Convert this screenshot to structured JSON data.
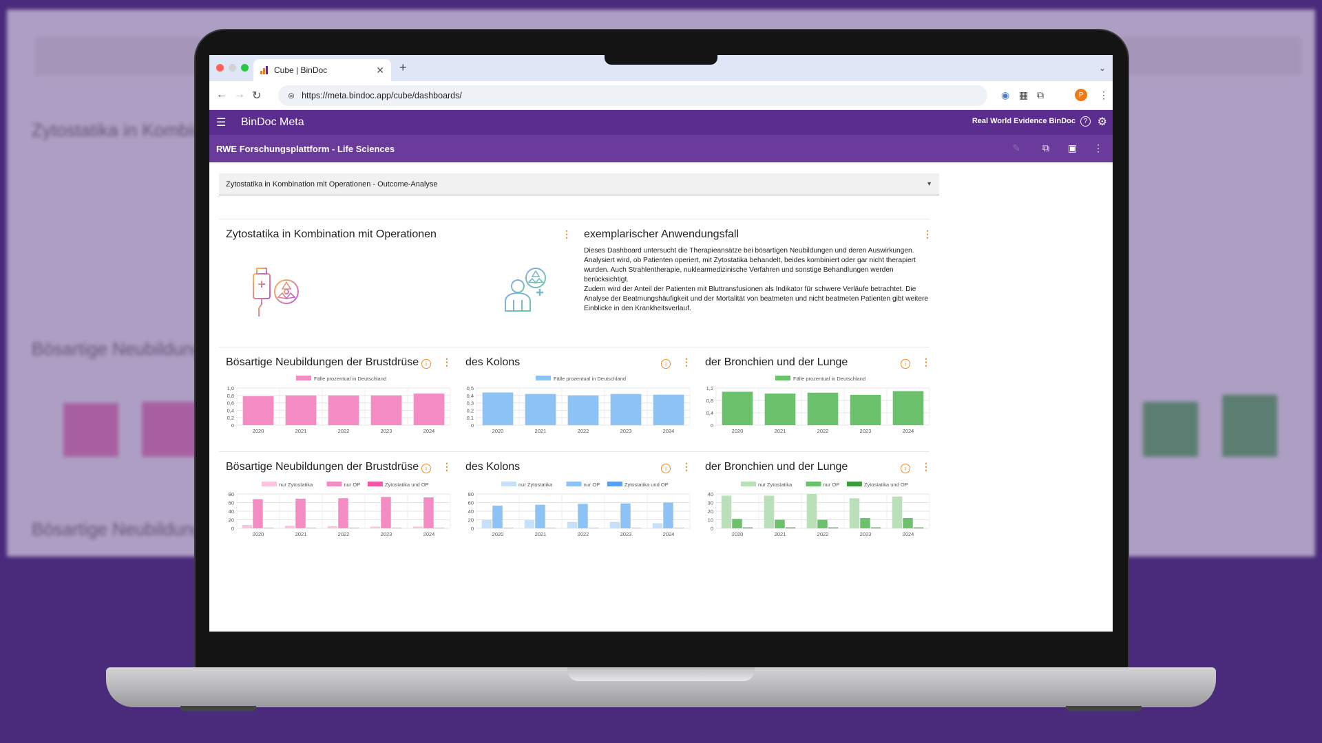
{
  "browser": {
    "tab_title": "Cube | BinDoc",
    "url": "https://meta.bindoc.app/cube/dashboards/",
    "profile_initial": "P"
  },
  "app": {
    "brand": "BinDoc Meta",
    "org": "Real World Evidence BinDoc",
    "dashboard_title": "RWE Forschungsplattform - Life Sciences",
    "dashboard_select": "Zytostatika in Kombination mit Operationen - Outcome-Analyse"
  },
  "intro": {
    "left_title": "Zytostatika in Kombination mit Operationen",
    "right_title": "exemplarischer Anwendungsfall",
    "description": [
      "Dieses Dashboard untersucht die Therapieansätze bei bösartigen Neubildungen und deren Auswirkungen. Analysiert wird, ob Patienten operiert, mit Zytostatika behandelt, beides kombiniert oder gar nicht therapiert wurden. Auch Strahlentherapie, nuklearmedizinische Verfahren und sonstige Behandlungen werden berücksichtigt.",
      "Zudem wird der Anteil der Patienten mit Bluttransfusionen als Indikator für schwere Verläufe betrachtet. Die Analyse der Beatmungshäufigkeit und der Mortalität von beatmeten und nicht beatmeten Patienten gibt weitere Einblicke in den Krankheitsverlauf."
    ]
  },
  "colors": {
    "pink": "#f48cc3",
    "pink_light": "#f9c6df",
    "pink_dark": "#f05aa5",
    "blue": "#8cc3f4",
    "blue_light": "#c6e0f9",
    "blue_dark": "#5aa0f0",
    "green": "#6cc26c",
    "green_light": "#b9e0b9",
    "green_dark": "#3b9a3b"
  },
  "chart_data": [
    {
      "type": "bar",
      "title": "Bösartige Neubildungen der Brustdrüse",
      "categories": [
        "2020",
        "2021",
        "2022",
        "2023",
        "2024"
      ],
      "series": [
        {
          "name": "Fälle prozentual in Deutschland",
          "values": [
            0.78,
            0.8,
            0.8,
            0.8,
            0.85
          ]
        }
      ],
      "ylim": [
        0,
        1.0
      ],
      "yticks": [
        "1,0",
        "0,8",
        "0,6",
        "0,4",
        "0,2",
        "0"
      ],
      "color": "pink"
    },
    {
      "type": "bar",
      "title": "des Kolons",
      "categories": [
        "2020",
        "2021",
        "2022",
        "2023",
        "2024"
      ],
      "series": [
        {
          "name": "Fälle prozentual in Deutschland",
          "values": [
            0.44,
            0.42,
            0.4,
            0.42,
            0.41
          ]
        }
      ],
      "ylim": [
        0,
        0.5
      ],
      "yticks": [
        "0,5",
        "0,4",
        "0,3",
        "0,2",
        "0,1",
        "0"
      ],
      "color": "blue"
    },
    {
      "type": "bar",
      "title": "der Bronchien und der Lunge",
      "categories": [
        "2020",
        "2021",
        "2022",
        "2023",
        "2024"
      ],
      "series": [
        {
          "name": "Fälle prozentual in Deutschland",
          "values": [
            1.08,
            1.02,
            1.05,
            0.98,
            1.1
          ]
        }
      ],
      "ylim": [
        0,
        1.2
      ],
      "yticks": [
        "1,2",
        "0,8",
        "0,4",
        "0"
      ],
      "color": "green"
    },
    {
      "type": "bar",
      "title": "Bösartige Neubildungen der Brustdrüse",
      "categories": [
        "2020",
        "2021",
        "2022",
        "2023",
        "2024"
      ],
      "series": [
        {
          "name": "nur Zytostatika",
          "values": [
            8,
            6,
            5,
            4,
            4
          ]
        },
        {
          "name": "nur OP",
          "values": [
            68,
            69,
            70,
            73,
            72
          ]
        },
        {
          "name": "Zytostatika und OP",
          "values": [
            1,
            1,
            1,
            1,
            1
          ]
        }
      ],
      "ylim": [
        0,
        80
      ],
      "yticks": [
        "80",
        "60",
        "40",
        "20",
        "0"
      ],
      "color": "pink"
    },
    {
      "type": "bar",
      "title": "des Kolons",
      "categories": [
        "2020",
        "2021",
        "2022",
        "2023",
        "2024"
      ],
      "series": [
        {
          "name": "nur Zytostatika",
          "values": [
            20,
            19,
            15,
            15,
            12
          ]
        },
        {
          "name": "nur OP",
          "values": [
            53,
            55,
            57,
            58,
            60
          ]
        },
        {
          "name": "Zytostatika und OP",
          "values": [
            1,
            1,
            1,
            1,
            1
          ]
        }
      ],
      "ylim": [
        0,
        80
      ],
      "yticks": [
        "80",
        "60",
        "40",
        "20",
        "0"
      ],
      "color": "blue"
    },
    {
      "type": "bar",
      "title": "der Bronchien und der Lunge",
      "categories": [
        "2020",
        "2021",
        "2022",
        "2023",
        "2024"
      ],
      "series": [
        {
          "name": "nur Zytostatika",
          "values": [
            38,
            38,
            40,
            35,
            37
          ]
        },
        {
          "name": "nur OP",
          "values": [
            11,
            10,
            10,
            12,
            12
          ]
        },
        {
          "name": "Zytostatika und OP",
          "values": [
            1,
            1,
            1,
            1,
            1
          ]
        }
      ],
      "ylim": [
        0,
        40
      ],
      "yticks": [
        "40",
        "30",
        "20",
        "10",
        "0"
      ],
      "color": "green"
    }
  ]
}
